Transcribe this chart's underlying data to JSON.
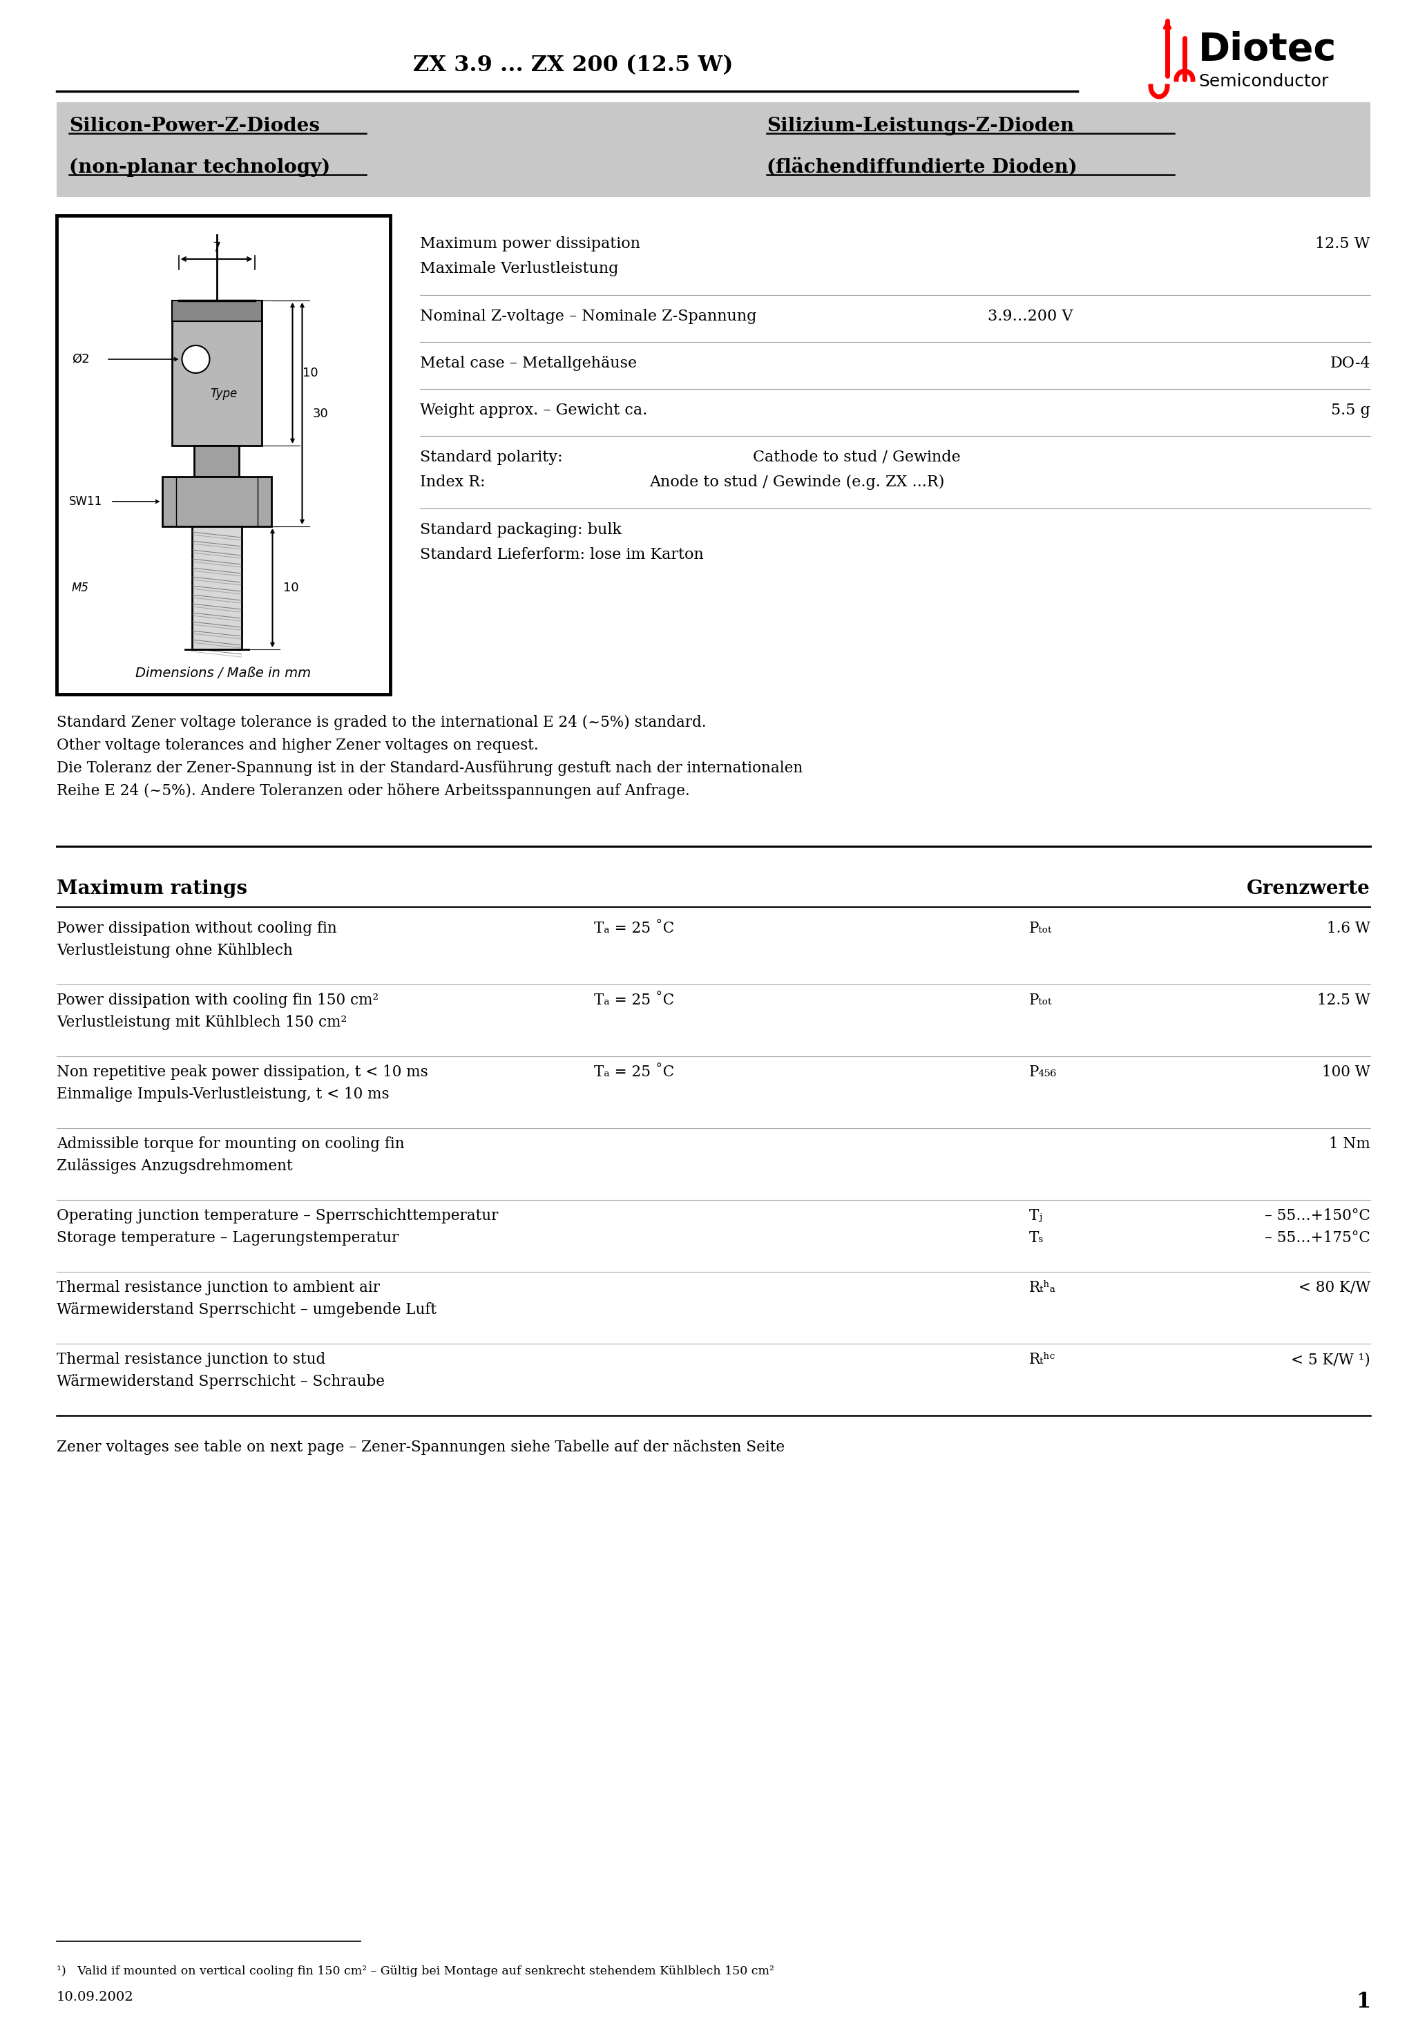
{
  "title": "ZX 3.9 ... ZX 200 (12.5 W)",
  "bg_color": "#ffffff",
  "header_bar_color": "#c8c8c8",
  "title_left1": "Silicon-Power-Z-Diodes",
  "title_left2": "(non-planar technology)",
  "title_right1": "Silizium-Leistungs-Z-Dioden",
  "title_right2": "(flächendiffundierte Dioden)",
  "note1": "Standard Zener voltage tolerance is graded to the international E 24 (~5%) standard.",
  "note2": "Other voltage tolerances and higher Zener voltages on request.",
  "note3": "Die Toleranz der Zener-Spannung ist in der Standard-Ausführung gestuft nach der internationalen",
  "note4": "Reihe E 24 (~5%). Andere Toleranzen oder höhere Arbeitsspannungen auf Anfrage.",
  "max_ratings_label": "Maximum ratings",
  "max_ratings_right": "Grenzwerte",
  "zener_note": "Zener voltages see table on next page – Zener-Spannungen siehe Tabelle auf der nächsten Seite",
  "footnote": "¹)   Valid if mounted on vertical cooling fin 150 cm² – Gültig bei Montage auf senkrecht stehendem Kühlblech 150 cm²",
  "date": "10.09.2002",
  "page_num": "1"
}
